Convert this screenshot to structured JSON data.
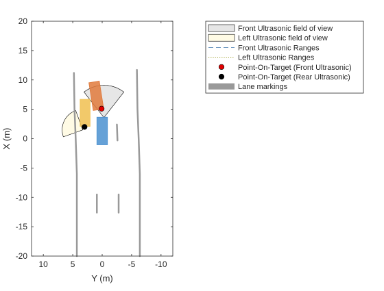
{
  "chart_data": {
    "type": "scatter",
    "title": "",
    "xlabel": "Y (m)",
    "ylabel": "X (m)",
    "x_axis_reversed": true,
    "xlim": [
      -12,
      12
    ],
    "ylim": [
      -20,
      20
    ],
    "xticks": [
      10,
      5,
      0,
      -5,
      -10
    ],
    "yticks": [
      -20,
      -15,
      -10,
      -5,
      0,
      5,
      10,
      15,
      20
    ],
    "grid": false,
    "legend_position": "top-right outside",
    "colors": {
      "front_fov_fill": "#e6e6e6",
      "left_fov_fill": "#fffbe5",
      "front_range_line": "#4a7fb0",
      "left_range_line": "#8a8a00",
      "point_front": "#e00000",
      "point_rear": "#000000",
      "lane": "#999999",
      "ego_vehicle": "#4a90d0",
      "vehicle_orange": "#e07a3c",
      "vehicle_yellow": "#f0c050"
    },
    "legend": [
      {
        "key": "front_fov",
        "label": "Front Ultrasonic field of view",
        "symbol": "patch-gray"
      },
      {
        "key": "left_fov",
        "label": "Left Ultrasonic field of view",
        "symbol": "patch-cream"
      },
      {
        "key": "front_ranges",
        "label": "Front Ultrasonic Ranges",
        "symbol": "dash"
      },
      {
        "key": "left_ranges",
        "label": "Left Ultrasonic Ranges",
        "symbol": "dot"
      },
      {
        "key": "pt_front",
        "label": "Point-On-Target (Front Ultrasonic)",
        "symbol": "marker-red"
      },
      {
        "key": "pt_rear",
        "label": "Point-On-Target (Rear Ultrasonic)",
        "symbol": "marker-black"
      },
      {
        "key": "lane",
        "label": "Lane markings",
        "symbol": "bar-gray"
      }
    ],
    "sensors": {
      "front": {
        "origin": [
          -0.3,
          3.6
        ],
        "range": 5.5,
        "start_angle_deg": 52,
        "end_angle_deg": 128
      },
      "left": {
        "origin": [
          3.3,
          1.5
        ],
        "range": 3.5,
        "start_angle_deg": 110,
        "end_angle_deg": 200
      }
    },
    "points_on_target": {
      "front": [
        0.1,
        5.1
      ],
      "rear": [
        3.0,
        2.0
      ]
    },
    "vehicles": [
      {
        "name": "ego",
        "center": [
          0,
          1.3
        ],
        "length": 4.7,
        "width": 1.8,
        "heading_deg": 0,
        "color": "#4a90d0"
      },
      {
        "name": "orange",
        "center": [
          1.0,
          7.3
        ],
        "length": 4.8,
        "width": 1.8,
        "heading_deg": -9,
        "color": "#e07a3c"
      },
      {
        "name": "yellow",
        "center": [
          2.9,
          4.4
        ],
        "length": 4.6,
        "width": 1.7,
        "heading_deg": 0,
        "color": "#f0c050"
      }
    ],
    "lanes": [
      {
        "points": [
          [
            4.8,
            11.2
          ],
          [
            4.7,
            5
          ],
          [
            4.5,
            0
          ],
          [
            4.3,
            -6
          ],
          [
            4.3,
            -20
          ]
        ]
      },
      {
        "points": [
          [
            -5.9,
            11.7
          ],
          [
            -6.0,
            5
          ],
          [
            -6.2,
            0
          ],
          [
            -6.4,
            -6
          ],
          [
            -6.4,
            -20
          ]
        ]
      },
      {
        "points": [
          [
            -2.5,
            2.4
          ],
          [
            -2.6,
            -0.3
          ]
        ]
      },
      {
        "points": [
          [
            -2.8,
            -9.5
          ],
          [
            -2.8,
            -12.6
          ]
        ]
      },
      {
        "points": [
          [
            0.9,
            -9.5
          ],
          [
            0.9,
            -12.6
          ]
        ]
      }
    ]
  }
}
